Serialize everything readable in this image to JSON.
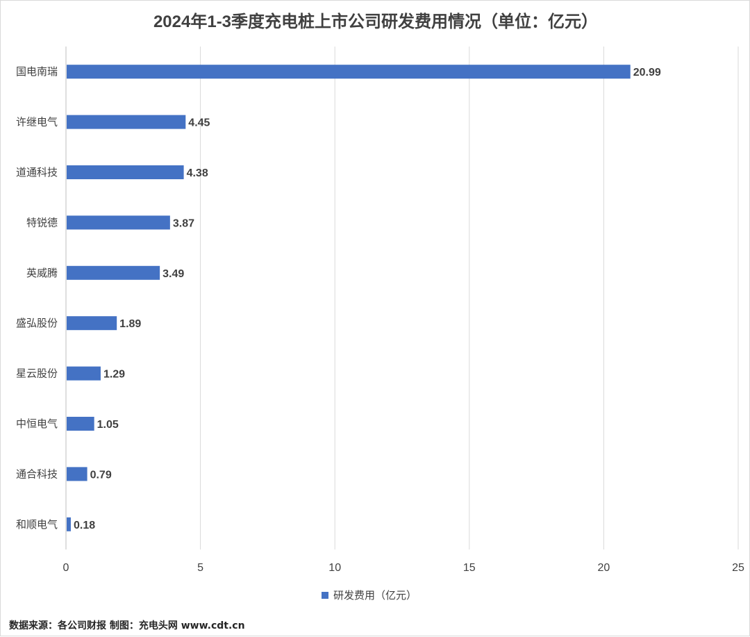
{
  "colors": {
    "bar": "#4472c4",
    "grid": "#d9d9d9",
    "axis": "#bfbfbf",
    "text": "#404040"
  },
  "source": "数据来源：各公司财报  制图：充电头网 www.cdt.cn",
  "chart_data": {
    "type": "bar",
    "orientation": "horizontal",
    "title": "2024年1-3季度充电桩上市公司研发费用情况（单位：亿元）",
    "xlabel": "",
    "ylabel": "",
    "xlim": [
      0,
      25
    ],
    "xticks": [
      0,
      5,
      10,
      15,
      20,
      25
    ],
    "grid": "vertical",
    "legend_position": "bottom",
    "categories": [
      "国电南瑞",
      "许继电气",
      "道通科技",
      "特锐德",
      "英威腾",
      "盛弘股份",
      "星云股份",
      "中恒电气",
      "通合科技",
      "和顺电气"
    ],
    "series": [
      {
        "name": "研发费用（亿元）",
        "values": [
          20.99,
          4.45,
          4.38,
          3.87,
          3.49,
          1.89,
          1.29,
          1.05,
          0.79,
          0.18
        ],
        "labels": [
          "20.99",
          "4.45",
          "4.38",
          "3.87",
          "3.49",
          "1.89",
          "1.29",
          "1.05",
          "0.79",
          "0.18"
        ]
      }
    ]
  }
}
